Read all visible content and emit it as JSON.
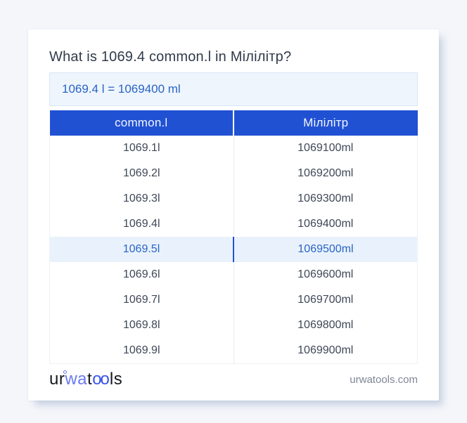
{
  "title": "What is 1069.4 common.l in Мілілітр?",
  "answer_box": {
    "text": "1069.4 l = 1069400 ml"
  },
  "table": {
    "headers": [
      "common.l",
      "Мілілітр"
    ],
    "rows": [
      {
        "common_l": "1069.1l",
        "milliliter": "1069100ml",
        "highlighted": false
      },
      {
        "common_l": "1069.2l",
        "milliliter": "1069200ml",
        "highlighted": false
      },
      {
        "common_l": "1069.3l",
        "milliliter": "1069300ml",
        "highlighted": false
      },
      {
        "common_l": "1069.4l",
        "milliliter": "1069400ml",
        "highlighted": false
      },
      {
        "common_l": "1069.5l",
        "milliliter": "1069500ml",
        "highlighted": true
      },
      {
        "common_l": "1069.6l",
        "milliliter": "1069600ml",
        "highlighted": false
      },
      {
        "common_l": "1069.7l",
        "milliliter": "1069700ml",
        "highlighted": false
      },
      {
        "common_l": "1069.8l",
        "milliliter": "1069800ml",
        "highlighted": false
      },
      {
        "common_l": "1069.9l",
        "milliliter": "1069900ml",
        "highlighted": false
      }
    ]
  },
  "footer": {
    "logo": {
      "segments": [
        {
          "text": "ur",
          "style": "dark"
        },
        {
          "text": "wa",
          "style": "blue-light",
          "mark": true
        },
        {
          "text": "t",
          "style": "dark"
        },
        {
          "text": "oo",
          "style": "blue"
        },
        {
          "text": "ls",
          "style": "dark"
        }
      ]
    },
    "site": "urwatools.com"
  },
  "colors": {
    "page-bg": "#f4f6fa",
    "header-blue": "#2151d3",
    "accent-text": "#2a64c4",
    "answer-bg": "#eef5fd",
    "answer-border": "#d9e6f8",
    "highlight-bg": "#e9f2fc",
    "logo-blue-light": "#6b79f1",
    "logo-blue": "#3b55e6"
  }
}
